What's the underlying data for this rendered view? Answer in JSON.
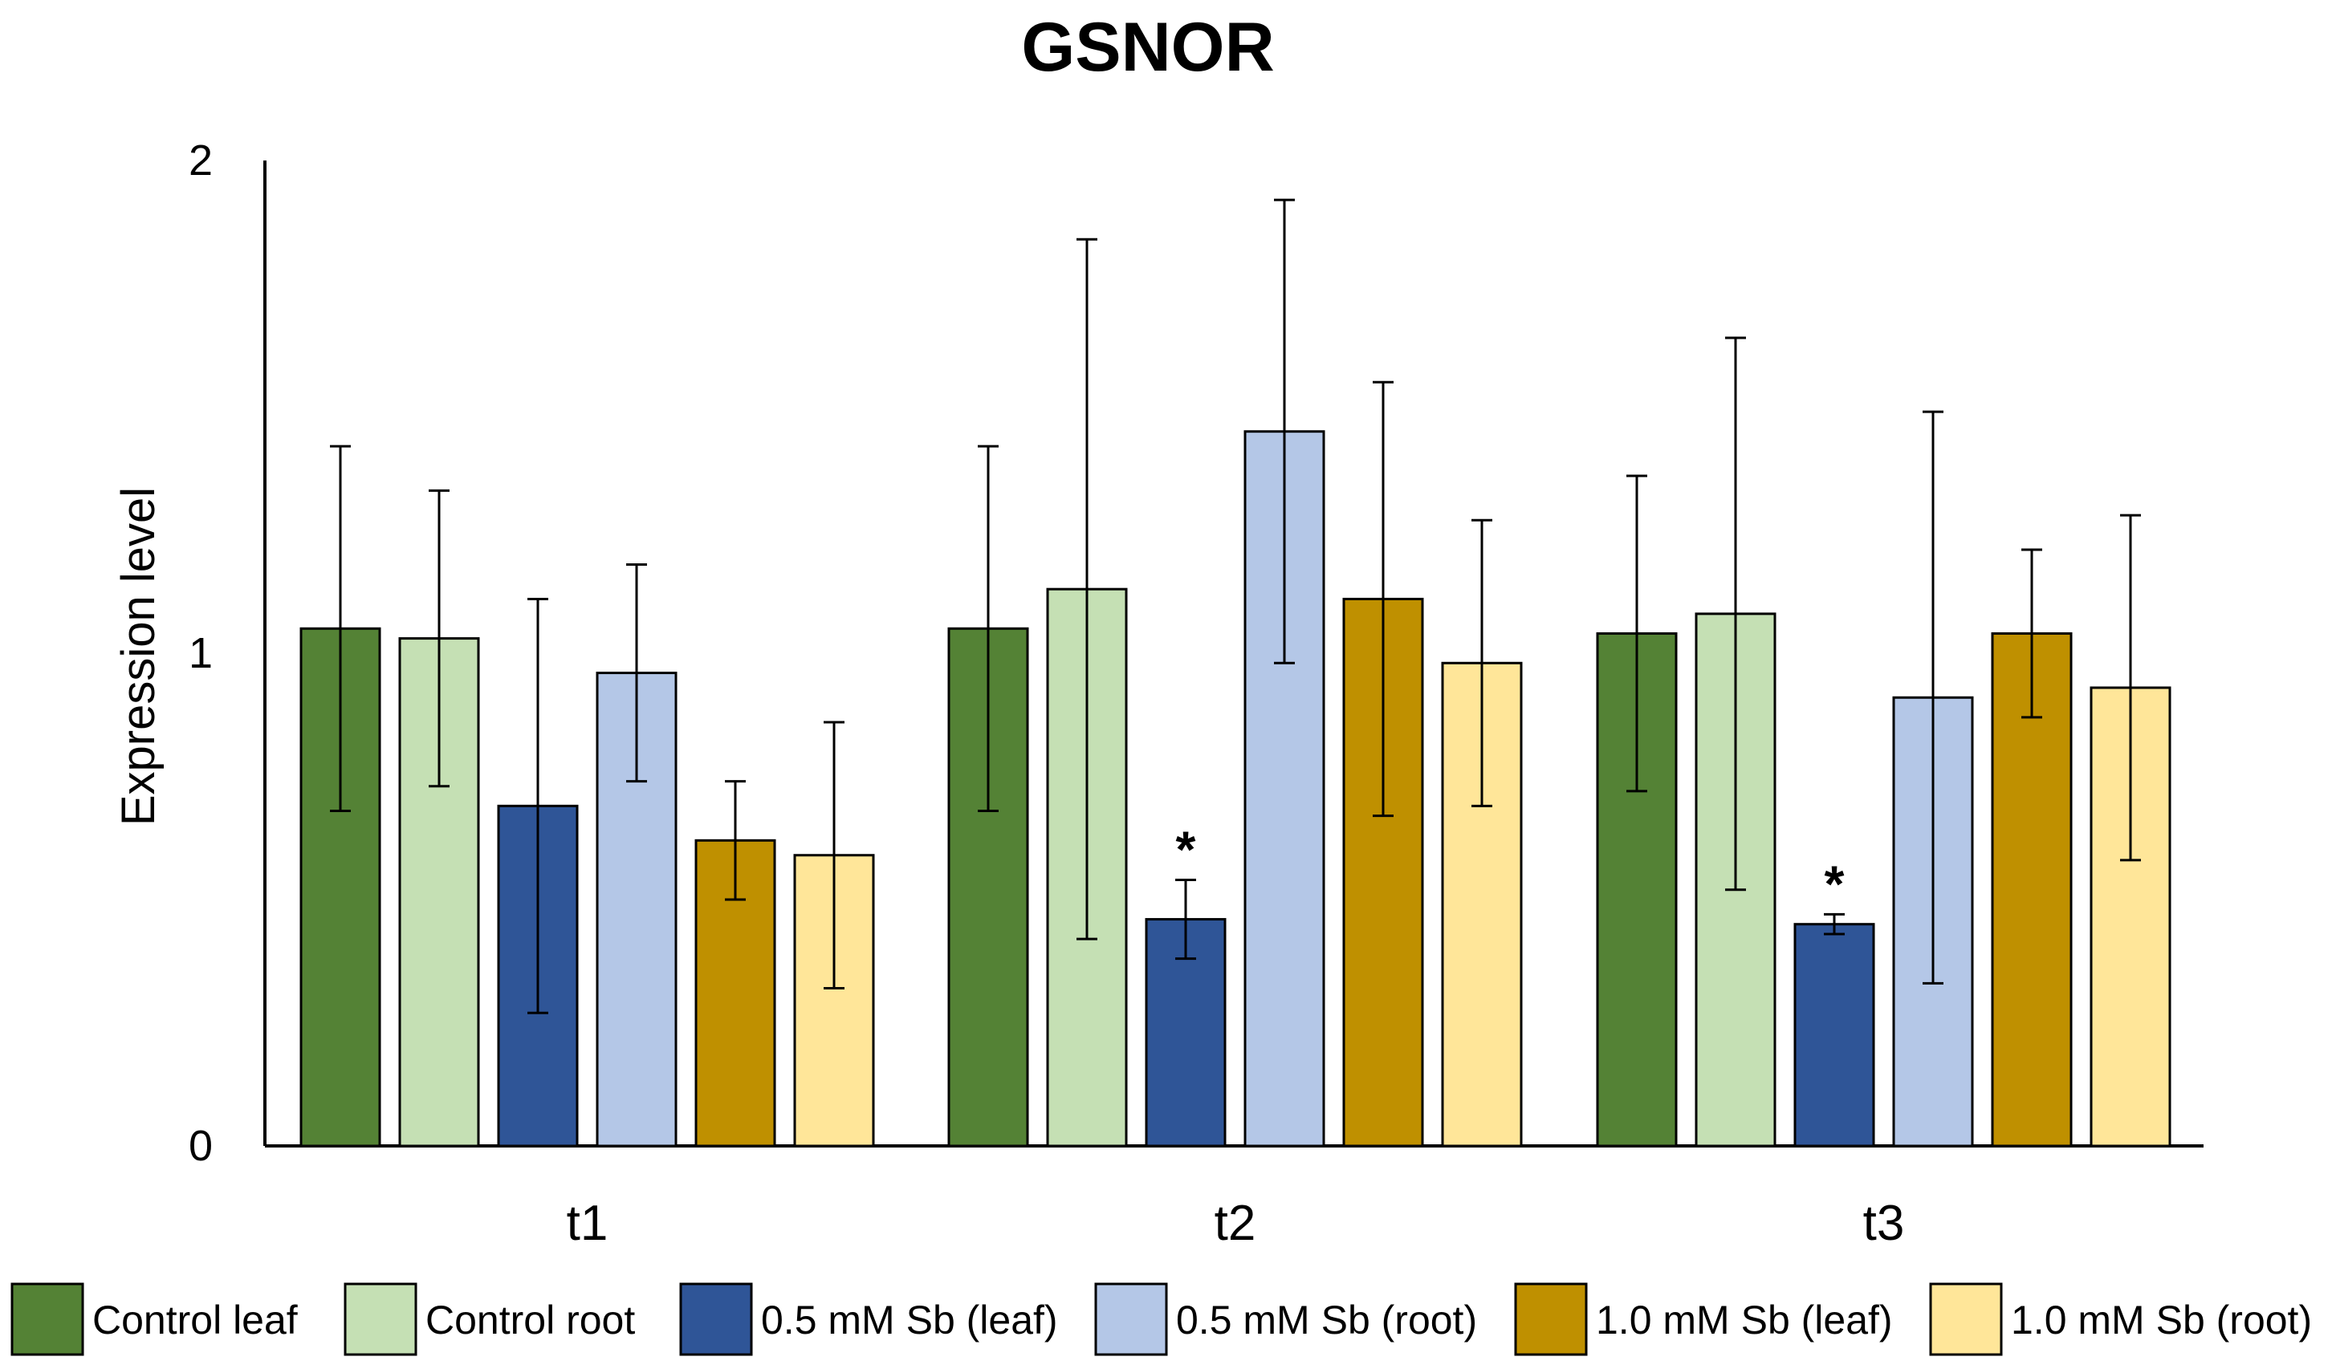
{
  "chart_data": {
    "type": "bar",
    "title": "GSNOR",
    "xlabel": "",
    "ylabel": "Expression level",
    "ylim": [
      0,
      2
    ],
    "yticks": [
      "0",
      "1",
      "2"
    ],
    "categories": [
      "t1",
      "t2",
      "t3"
    ],
    "legend_position": "bottom",
    "series": [
      {
        "name": "Control leaf",
        "color": "#548235",
        "values": [
          1.05,
          1.05,
          1.04
        ],
        "errors": [
          0.37,
          0.37,
          0.32
        ],
        "marks": [
          "",
          "",
          ""
        ]
      },
      {
        "name": "Control root",
        "color": "#C5E0B4",
        "values": [
          1.03,
          1.13,
          1.08
        ],
        "errors": [
          0.3,
          0.71,
          0.56
        ],
        "marks": [
          "",
          "",
          ""
        ]
      },
      {
        "name": "0.5 mM Sb (leaf)",
        "color": "#2F5597",
        "values": [
          0.69,
          0.46,
          0.45
        ],
        "errors": [
          0.42,
          0.08,
          0.02
        ],
        "marks": [
          "",
          "*",
          "*"
        ]
      },
      {
        "name": "0.5 mM Sb (root)",
        "color": "#B4C7E7",
        "values": [
          0.96,
          1.45,
          0.91
        ],
        "errors": [
          0.22,
          0.47,
          0.58
        ],
        "marks": [
          "",
          "",
          ""
        ]
      },
      {
        "name": "1.0 mM Sb (leaf)",
        "color": "#BF9000",
        "values": [
          0.62,
          1.11,
          1.04
        ],
        "errors": [
          0.12,
          0.44,
          0.17
        ],
        "marks": [
          "",
          "",
          ""
        ]
      },
      {
        "name": "1.0 mM Sb (root)",
        "color": "#FFE699",
        "values": [
          0.59,
          0.98,
          0.93
        ],
        "errors": [
          0.27,
          0.29,
          0.35
        ],
        "marks": [
          "",
          "",
          ""
        ]
      }
    ]
  }
}
